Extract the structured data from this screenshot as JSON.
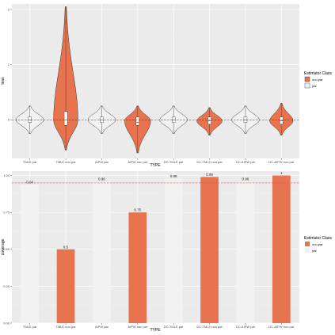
{
  "chart_data": [
    {
      "type": "violin",
      "xlabel": "TYPE",
      "ylabel": "bias",
      "categories": [
        "TMLE par",
        "TMLE non par",
        "AIPW par",
        "AIPW non par",
        "DC-TMLE par",
        "DC-TMLE non par",
        "DC-AIPW par",
        "DC-AIPW non par"
      ],
      "classes": [
        "par",
        "non par",
        "par",
        "non par",
        "par",
        "non par",
        "par",
        "non par"
      ],
      "ylim": [
        -0.7,
        2.1
      ],
      "yticks": [
        "0",
        "1",
        "2"
      ],
      "reference_line": 0,
      "grid": true,
      "legend": {
        "title": "Estimator Class",
        "entries": [
          "non par",
          "par"
        ],
        "position": "right"
      },
      "distributions": [
        {
          "min": -0.25,
          "q1": -0.05,
          "median": 0.0,
          "q3": 0.05,
          "max": 0.25,
          "width": 0.85,
          "mode": 0.0
        },
        {
          "min": -0.55,
          "q1": -0.1,
          "median": 0.0,
          "q3": 0.15,
          "max": 2.05,
          "width": 0.75,
          "mode": 0.0
        },
        {
          "min": -0.25,
          "q1": -0.05,
          "median": 0.0,
          "q3": 0.05,
          "max": 0.25,
          "width": 0.85,
          "mode": 0.0
        },
        {
          "min": -0.6,
          "q1": -0.1,
          "median": -0.05,
          "q3": 0.05,
          "max": 0.25,
          "width": 0.8,
          "mode": -0.02
        },
        {
          "min": -0.25,
          "q1": -0.05,
          "median": 0.0,
          "q3": 0.05,
          "max": 0.25,
          "width": 0.85,
          "mode": 0.0
        },
        {
          "min": -0.28,
          "q1": -0.08,
          "median": -0.02,
          "q3": 0.05,
          "max": 0.22,
          "width": 0.78,
          "mode": -0.02
        },
        {
          "min": -0.25,
          "q1": -0.05,
          "median": 0.0,
          "q3": 0.05,
          "max": 0.25,
          "width": 0.85,
          "mode": 0.0
        },
        {
          "min": -0.28,
          "q1": -0.08,
          "median": -0.02,
          "q3": 0.05,
          "max": 0.3,
          "width": 0.72,
          "mode": -0.02
        }
      ]
    },
    {
      "type": "bar",
      "xlabel": "TYPE",
      "ylabel": "coverage",
      "categories": [
        "TMLE par",
        "TMLE non par",
        "AIPW par",
        "AIPW non par",
        "DC-TMLE par",
        "DC-TMLE non par",
        "DC-AIPW par",
        "DC-AIPW non par"
      ],
      "classes": [
        "par",
        "non par",
        "par",
        "non par",
        "par",
        "non par",
        "par",
        "non par"
      ],
      "values": [
        0.94,
        0.5,
        0.96,
        0.75,
        0.98,
        0.99,
        0.96,
        1
      ],
      "labels": [
        "0.94",
        "0.5",
        "0.96",
        "0.75",
        "0.98",
        "0.99",
        "0.96",
        "1"
      ],
      "ylim": [
        0,
        1.03
      ],
      "yticks": [
        "0.00",
        "0.25",
        "0.50",
        "0.75",
        "1.00"
      ],
      "reference_line": 0.95,
      "grid": true,
      "legend": {
        "title": "Estimator Class",
        "entries": [
          "non par",
          "par"
        ],
        "position": "right"
      }
    }
  ],
  "colors": {
    "nonpar": "#e8734f",
    "par": "#f2f2f2",
    "panel": "#ebebeb",
    "grid": "#ffffff",
    "refline_top": "#333333",
    "refline_bottom": "#e05a4f"
  }
}
